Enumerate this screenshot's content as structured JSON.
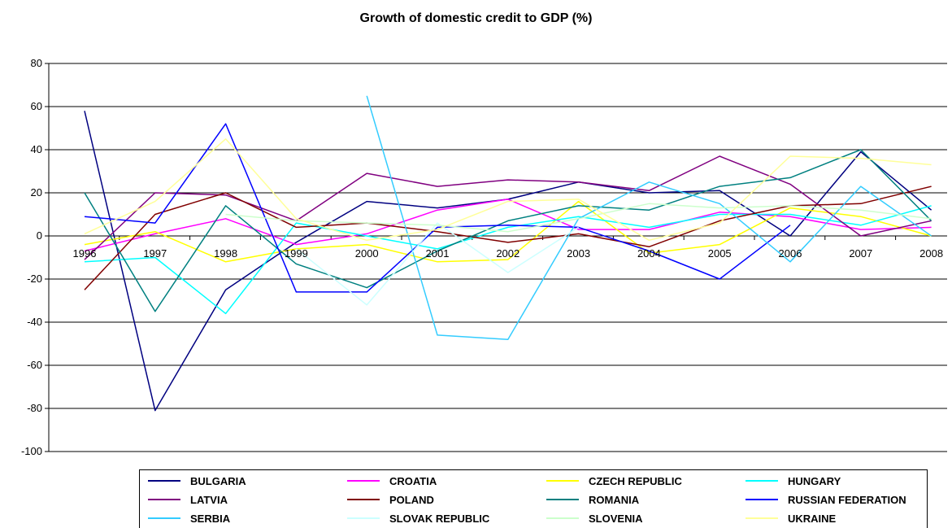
{
  "chart_data": {
    "type": "line",
    "title": "Growth of domestic credit to GDP (%)",
    "xlabel": "",
    "ylabel": "",
    "categories": [
      "1996",
      "1997",
      "1998",
      "1999",
      "2000",
      "2001",
      "2002",
      "2003",
      "2004",
      "2005",
      "2006",
      "2007",
      "2008"
    ],
    "ylim": [
      -100,
      80
    ],
    "yticks": [
      80,
      60,
      40,
      20,
      0,
      -20,
      -40,
      -60,
      -80,
      -100
    ],
    "grid": true,
    "legend_position": "bottom",
    "series": [
      {
        "name": "BULGARIA",
        "color": "#000080",
        "values": [
          58,
          -81,
          -25,
          -3,
          16,
          13,
          17,
          25,
          20,
          21,
          0,
          39,
          12
        ]
      },
      {
        "name": "CROATIA",
        "color": "#FF00FF",
        "values": [
          -7,
          1,
          8,
          -4,
          1,
          12,
          17,
          3,
          3,
          11,
          9,
          3,
          4
        ]
      },
      {
        "name": "CZECH REPUBLIC",
        "color": "#FFFF00",
        "values": [
          -4,
          2,
          -12,
          -6,
          -4,
          -12,
          -11,
          16,
          -8,
          -4,
          13,
          9,
          0
        ]
      },
      {
        "name": "HUNGARY",
        "color": "#00FFFF",
        "values": [
          -12,
          -10,
          -36,
          6,
          0,
          -6,
          4,
          9,
          4,
          10,
          10,
          5,
          14
        ]
      },
      {
        "name": "LATVIA",
        "color": "#800080",
        "values": [
          -11,
          20,
          19,
          7,
          29,
          23,
          26,
          25,
          21,
          37,
          24,
          0,
          7
        ]
      },
      {
        "name": "POLAND",
        "color": "#800000",
        "values": [
          -25,
          10,
          20,
          4,
          6,
          2,
          -3,
          1,
          -5,
          7,
          14,
          15,
          23
        ]
      },
      {
        "name": "ROMANIA",
        "color": "#008080",
        "values": [
          20,
          -35,
          14,
          -13,
          -24,
          -7,
          7,
          14,
          12,
          23,
          27,
          40,
          7
        ]
      },
      {
        "name": "RUSSIAN FEDERATION",
        "color": "#0000FF",
        "values": [
          9,
          6,
          52,
          -26,
          -26,
          4,
          5,
          4,
          -7,
          -20,
          5,
          null,
          null
        ]
      },
      {
        "name": "SERBIA",
        "color": "#33CCFF",
        "values": [
          null,
          null,
          null,
          null,
          65,
          -46,
          -48,
          8,
          25,
          15,
          -12,
          23,
          0
        ]
      },
      {
        "name": "SLOVAK REPUBLIC",
        "color": "#CCFFFF",
        "values": [
          null,
          null,
          null,
          -6,
          -32,
          6,
          -17,
          4,
          null,
          null,
          null,
          null,
          null
        ]
      },
      {
        "name": "SLOVENIA",
        "color": "#CCFFCC",
        "values": [
          null,
          null,
          10,
          7,
          6,
          5,
          2,
          8,
          15,
          13,
          14,
          12,
          8
        ]
      },
      {
        "name": "UKRAINE",
        "color": "#FFFF99",
        "values": [
          1,
          16,
          45,
          8,
          -2,
          3,
          16,
          17,
          -2,
          6,
          37,
          36,
          33
        ]
      }
    ]
  }
}
